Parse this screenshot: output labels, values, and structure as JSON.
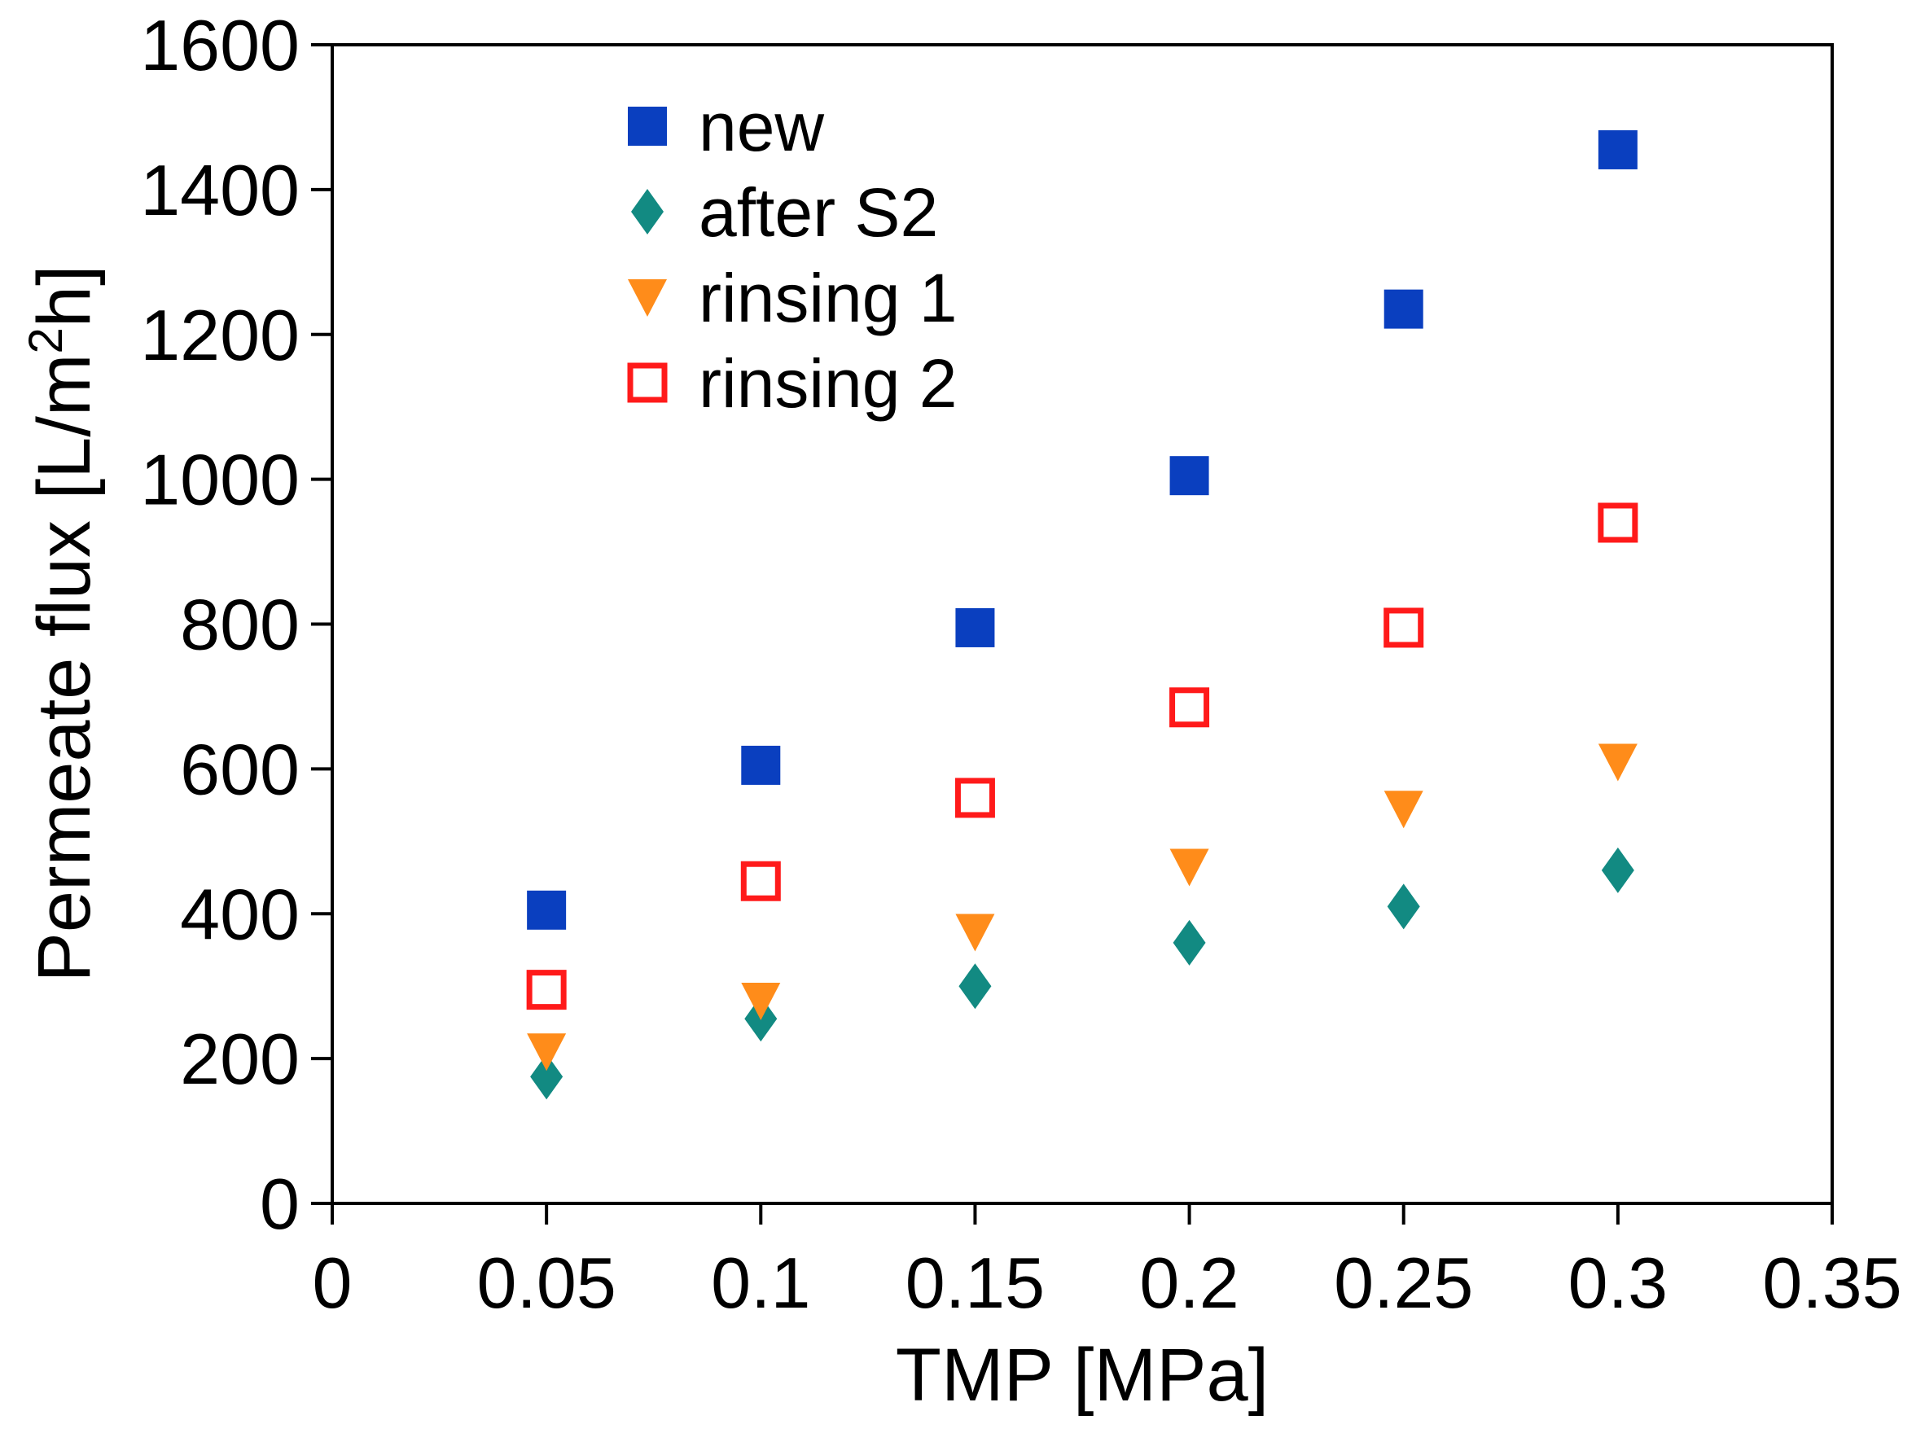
{
  "chart_data": {
    "type": "scatter",
    "title": "",
    "xlabel": "TMP [MPa]",
    "ylabel_main": "Permeate flux [L/m",
    "ylabel_sup": "2",
    "ylabel_tail": "h]",
    "xlim": [
      0,
      0.35
    ],
    "ylim": [
      0,
      1600
    ],
    "xticks": [
      0,
      0.05,
      0.1,
      0.15,
      0.2,
      0.25,
      0.3,
      0.35
    ],
    "xtick_labels": [
      "0",
      "0.05",
      "0.1",
      "0.15",
      "0.2",
      "0.25",
      "0.3",
      "0.35"
    ],
    "yticks": [
      0,
      200,
      400,
      600,
      800,
      1000,
      1200,
      1400,
      1600
    ],
    "ytick_labels": [
      "0",
      "200",
      "400",
      "600",
      "800",
      "1000",
      "1200",
      "1400",
      "1600"
    ],
    "grid": false,
    "legend_position": "top-left",
    "series": [
      {
        "name": "new",
        "marker": "square-filled",
        "color": "#0a3fbf",
        "x": [
          0.05,
          0.1,
          0.15,
          0.2,
          0.25,
          0.3
        ],
        "y": [
          405,
          605,
          795,
          1005,
          1235,
          1455
        ]
      },
      {
        "name": "after S2",
        "marker": "diamond",
        "color": "#128a82",
        "x": [
          0.05,
          0.1,
          0.15,
          0.2,
          0.25,
          0.3
        ],
        "y": [
          175,
          255,
          300,
          360,
          410,
          460
        ]
      },
      {
        "name": "rinsing 1",
        "marker": "triangle-down",
        "color": "#ff8c1a",
        "x": [
          0.05,
          0.1,
          0.15,
          0.2,
          0.25,
          0.3
        ],
        "y": [
          210,
          280,
          375,
          465,
          545,
          610
        ]
      },
      {
        "name": "rinsing 2",
        "marker": "square-open",
        "color": "#ff1a1a",
        "x": [
          0.05,
          0.1,
          0.15,
          0.2,
          0.25,
          0.3
        ],
        "y": [
          295,
          445,
          560,
          685,
          795,
          940
        ]
      }
    ]
  }
}
